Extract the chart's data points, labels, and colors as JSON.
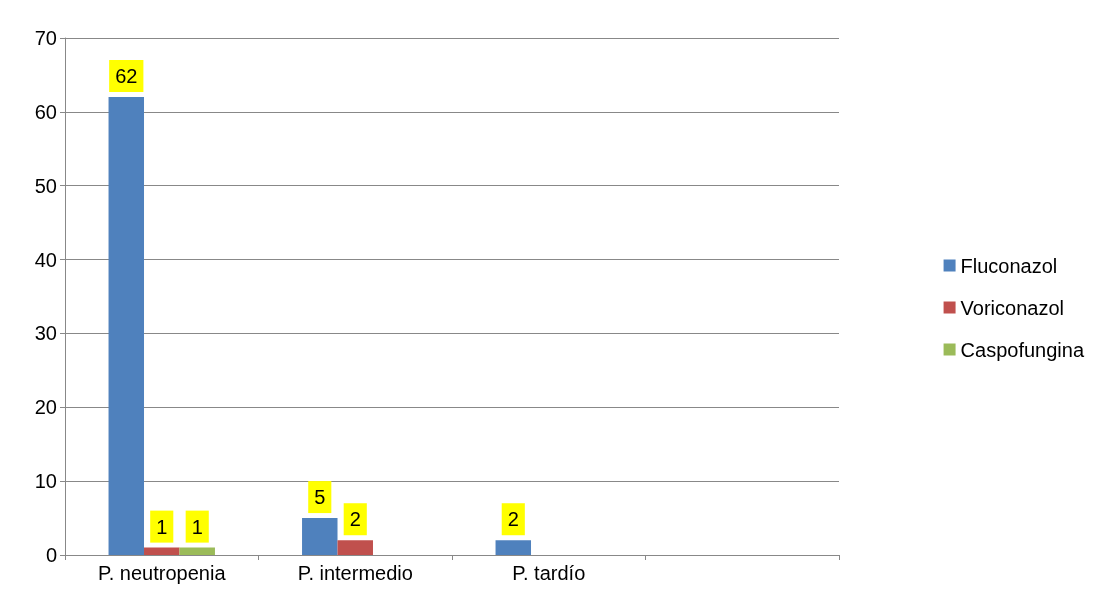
{
  "chart_data": {
    "type": "bar",
    "categories": [
      "P. neutropenia",
      "P. intermedio",
      "P. tardío",
      null
    ],
    "series": [
      {
        "name": "Fluconazol",
        "color": "#4f81bd",
        "values": [
          62,
          5,
          2,
          null
        ]
      },
      {
        "name": "Voriconazol",
        "color": "#c0504d",
        "values": [
          1,
          2,
          null,
          null
        ]
      },
      {
        "name": "Caspofungina",
        "color": "#9bbb59",
        "values": [
          1,
          null,
          null,
          null
        ]
      }
    ],
    "ylim": [
      0,
      70
    ],
    "yticks": [
      0,
      10,
      20,
      30,
      40,
      50,
      60,
      70
    ],
    "grid": "y",
    "legend": "right",
    "data_labels": true
  }
}
